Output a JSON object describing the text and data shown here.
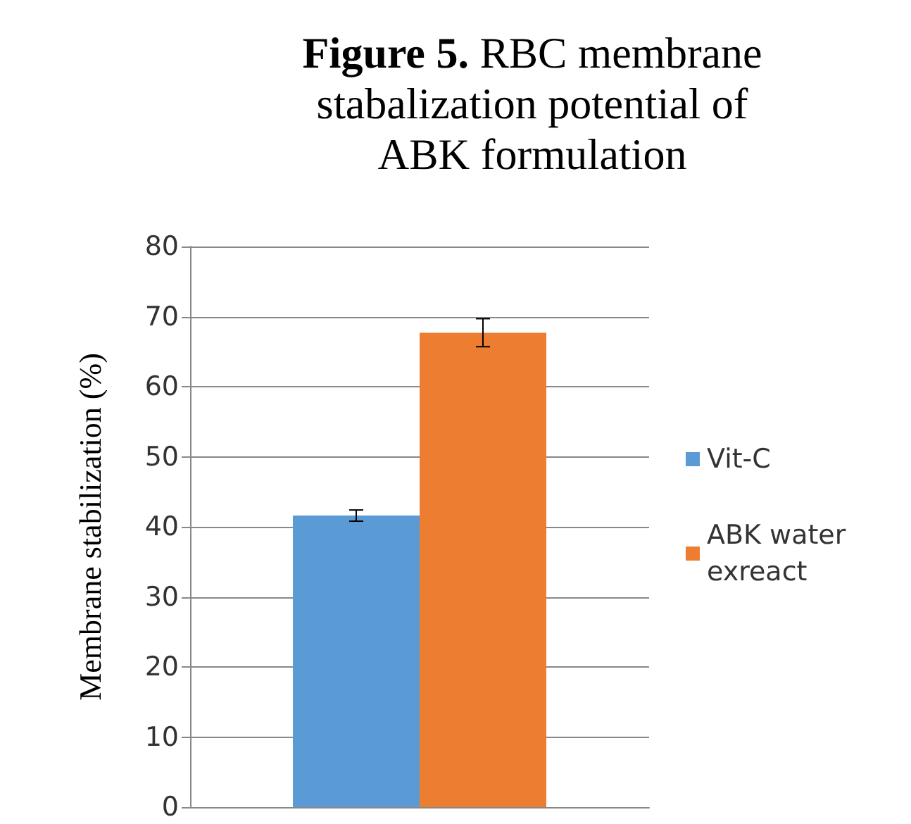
{
  "chart_data": {
    "type": "bar",
    "title": "Figure 5. RBC membrane stabalization potential of ABK formulation",
    "ylabel": "Membrane stabilization (%)",
    "categories": [
      null
    ],
    "series": [
      {
        "name": "Vit-C",
        "color": "#5b9bd5",
        "values": [
          41.6
        ],
        "errors": [
          0.8
        ]
      },
      {
        "name": "ABK water exreact",
        "color": "#ed7d31",
        "values": [
          67.7
        ],
        "errors": [
          2
        ]
      }
    ],
    "ylim": [
      0,
      80
    ],
    "yticks": [
      0,
      10,
      20,
      30,
      40,
      50,
      60,
      70,
      80
    ],
    "grid": "y",
    "legend": "right"
  }
}
